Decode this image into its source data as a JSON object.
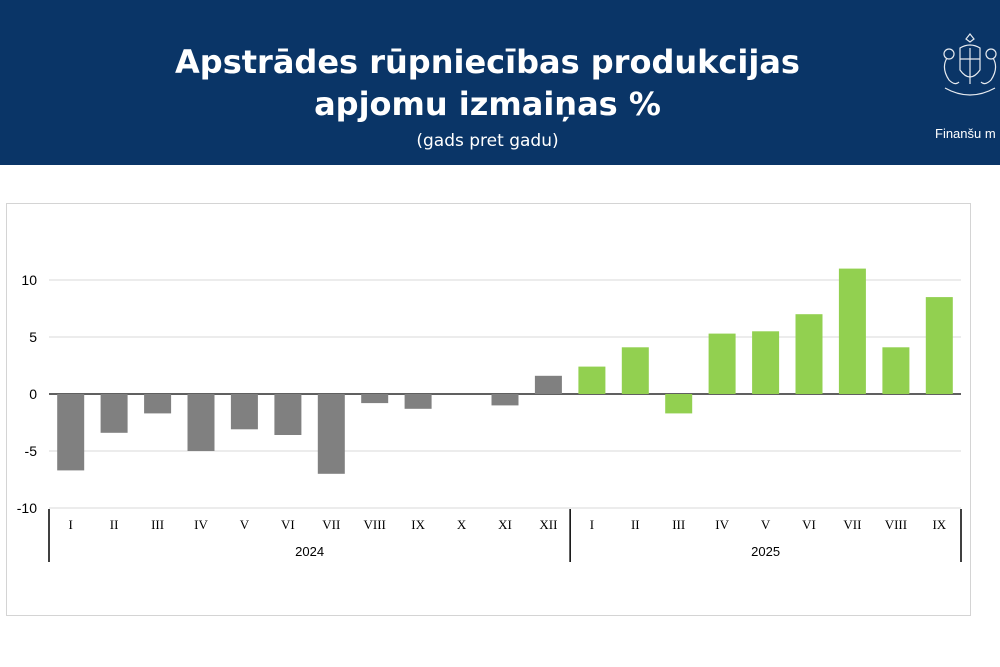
{
  "header": {
    "title_line1": "Apstrādes rūpniecības produkcijas",
    "title_line2": "apjomu izmaiņas %",
    "subtitle": "(gads pret gadu)",
    "org": "Finanšu m",
    "background": "#0a3567"
  },
  "chart_data": {
    "type": "bar",
    "title": "Apstrādes rūpniecības produkcijas apjomu izmaiņas %",
    "subtitle": "(gads pret gadu)",
    "categories": [
      "I",
      "II",
      "III",
      "IV",
      "V",
      "VI",
      "VII",
      "VIII",
      "IX",
      "X",
      "XI",
      "XII",
      "I",
      "II",
      "III",
      "IV",
      "V",
      "VI",
      "VII",
      "VIII",
      "IX"
    ],
    "groups": [
      {
        "label": "2024",
        "count": 12,
        "color": "#808080"
      },
      {
        "label": "2025",
        "count": 9,
        "color": "#92d050"
      }
    ],
    "values": [
      -6.7,
      -3.4,
      -1.7,
      -5.0,
      -3.1,
      -3.6,
      -7.0,
      -0.8,
      -1.3,
      0,
      -1.0,
      1.6,
      2.4,
      4.1,
      -1.7,
      5.3,
      5.5,
      7.0,
      11.0,
      4.1,
      8.5
    ],
    "yticks": [
      "10",
      "5",
      "0",
      "-5",
      "-10"
    ],
    "ylim": [
      -10,
      13
    ],
    "grid": true,
    "xlabel": "",
    "ylabel": ""
  }
}
